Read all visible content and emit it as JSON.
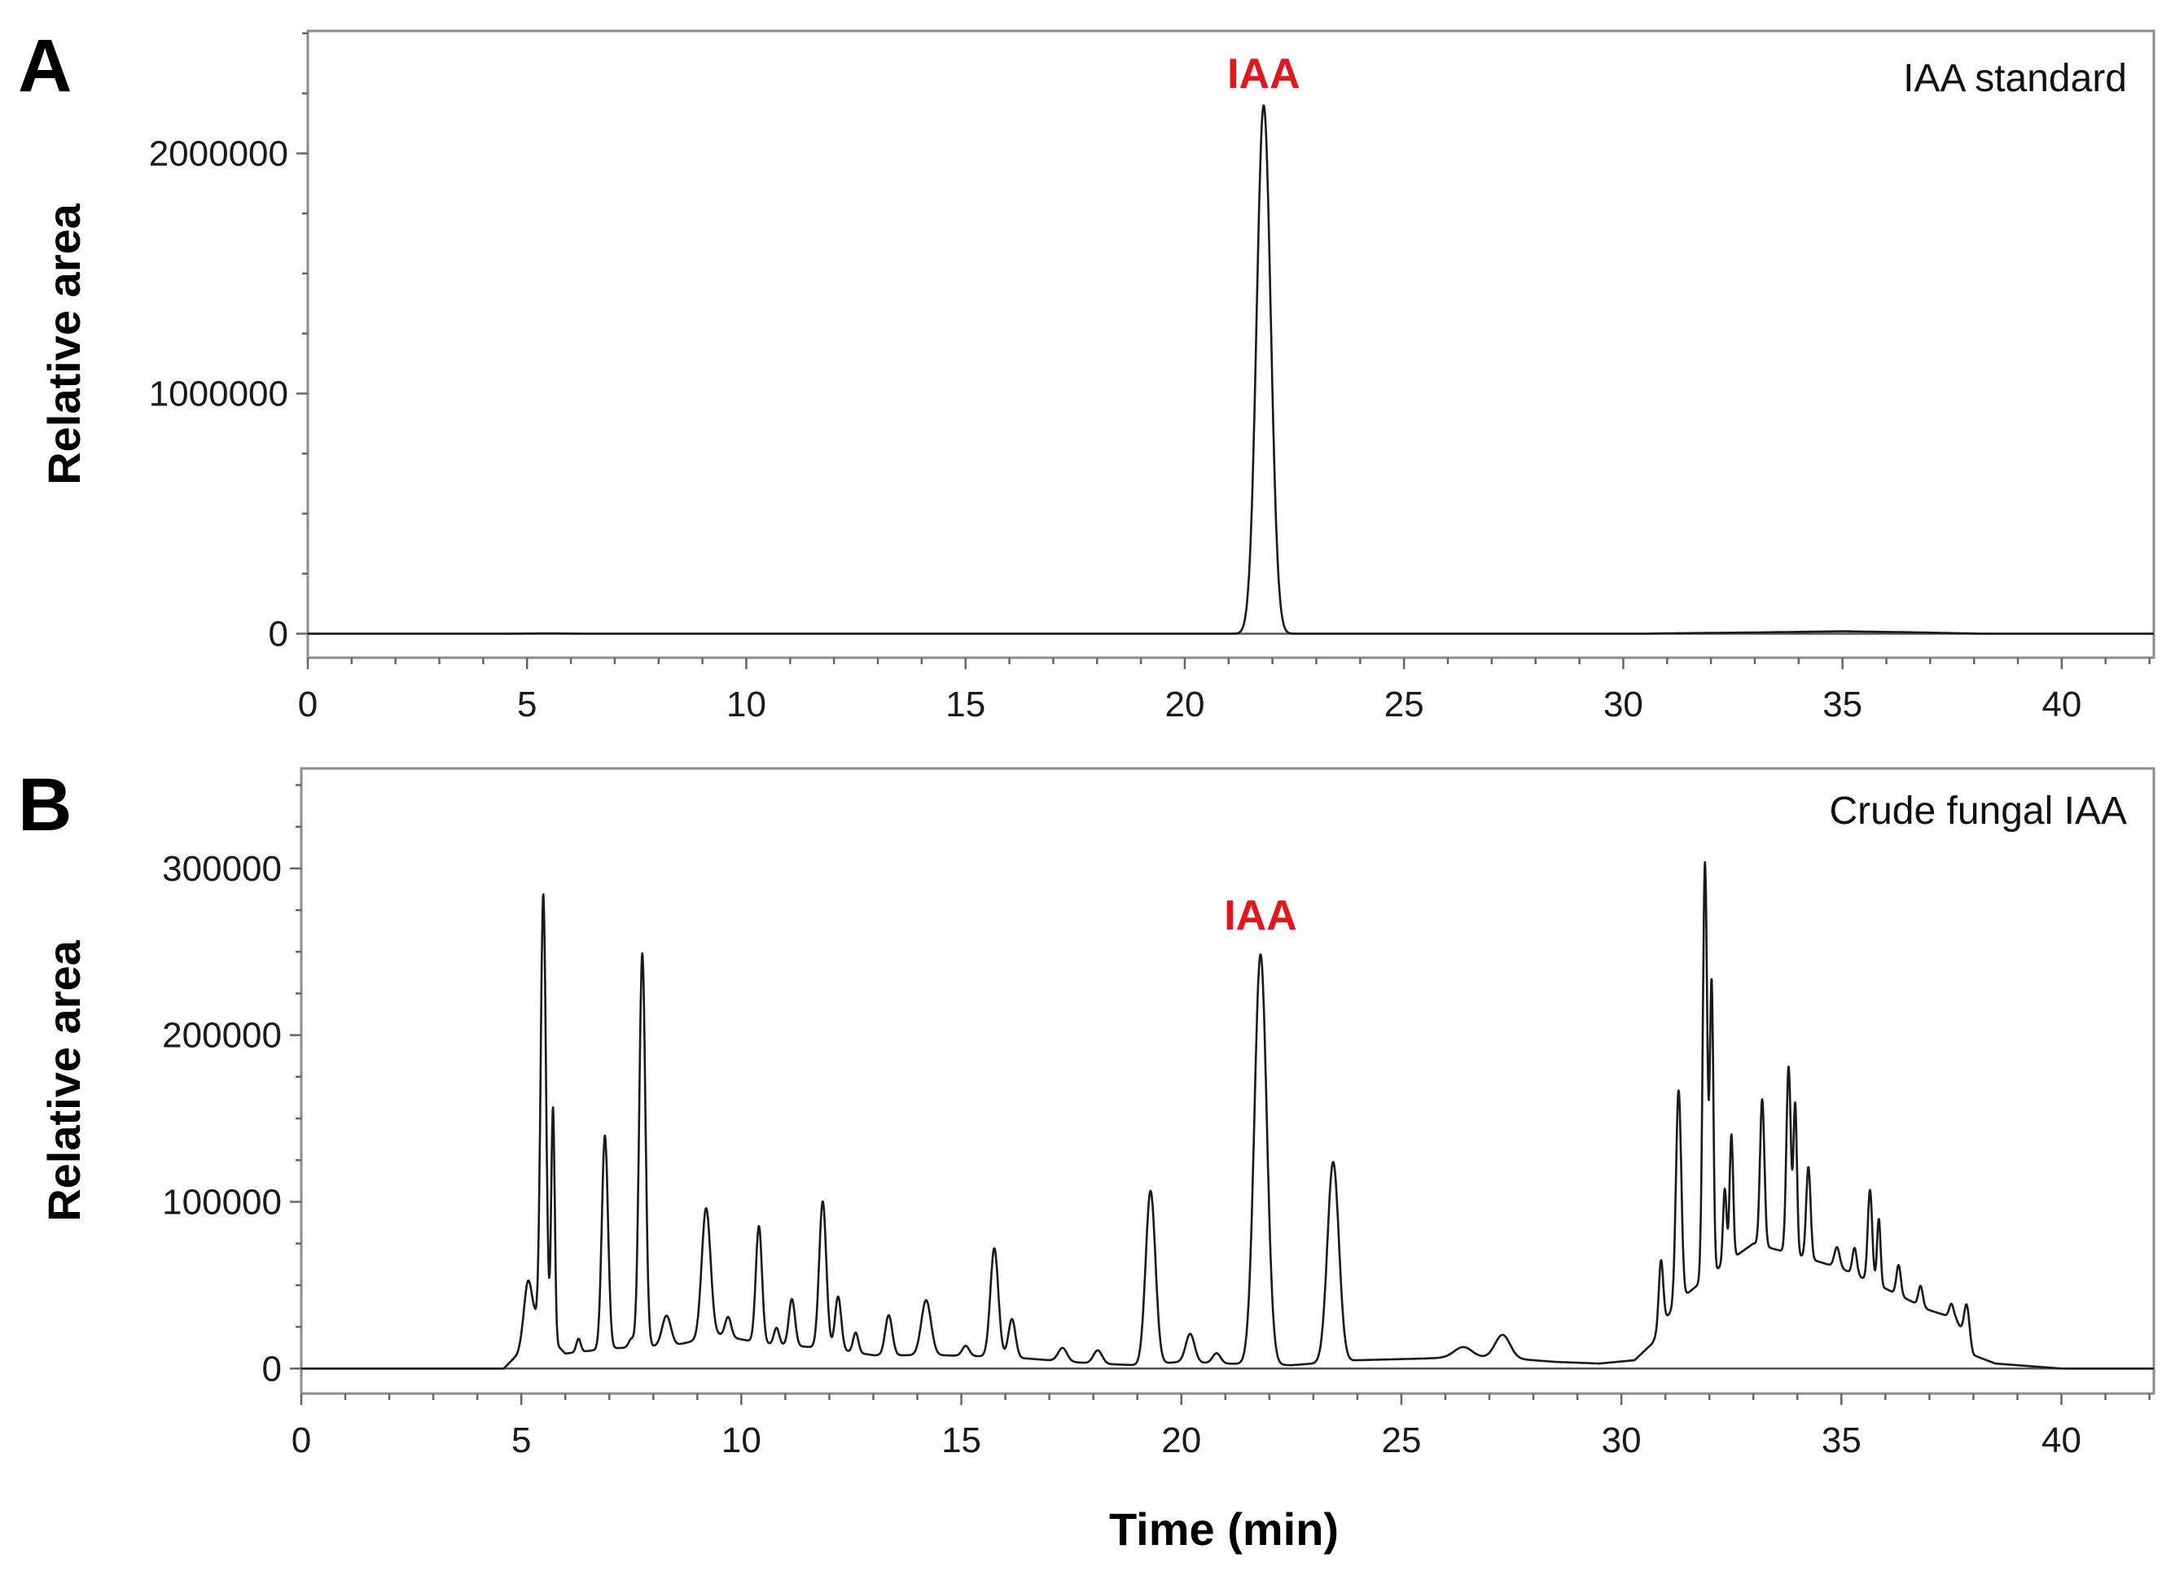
{
  "chart_data": [
    {
      "type": "line",
      "panel": "A",
      "sample_label": "IAA standard",
      "peak_label": {
        "text": "IAA",
        "x": 21.8,
        "color": "#e8141b"
      },
      "xlabel": "",
      "ylabel": "Relative area",
      "xlim": [
        0,
        42.1
      ],
      "ylim": [
        -100000,
        2510000
      ],
      "x_ticks": [
        0,
        5,
        10,
        15,
        20,
        25,
        30,
        35,
        40
      ],
      "x_tick_labels": [
        "0",
        "5",
        "10",
        "15",
        "20",
        "25",
        "30",
        "35",
        "40"
      ],
      "y_ticks": [
        0,
        1000000,
        2000000
      ],
      "y_tick_labels": [
        "0",
        "1000000",
        "2000000"
      ],
      "grid": false,
      "series": [
        {
          "color": "#1a1a1a",
          "baseline": [
            [
              0,
              0
            ],
            [
              4.5,
              0
            ],
            [
              5.5,
              1200
            ],
            [
              6.3,
              0
            ],
            [
              30.5,
              0
            ],
            [
              31,
              1500
            ],
            [
              33,
              5000
            ],
            [
              35,
              10000
            ],
            [
              36.5,
              6000
            ],
            [
              38.2,
              0
            ],
            [
              42.1,
              0
            ]
          ],
          "peaks": [
            [
              21.8,
              2200000,
              0.16
            ]
          ]
        }
      ]
    },
    {
      "type": "line",
      "panel": "B",
      "sample_label": "Crude fungal IAA",
      "peak_label": {
        "text": "IAA",
        "x": 21.8,
        "color": "#e8141b"
      },
      "xlabel": "Time (min)",
      "ylabel": "Relative area",
      "xlim": [
        0,
        42.1
      ],
      "ylim": [
        -15000,
        360000
      ],
      "x_ticks": [
        0,
        5,
        10,
        15,
        20,
        25,
        30,
        35,
        40
      ],
      "x_tick_labels": [
        "0",
        "5",
        "10",
        "15",
        "20",
        "25",
        "30",
        "35",
        "40"
      ],
      "y_ticks": [
        0,
        100000,
        200000,
        300000
      ],
      "y_tick_labels": [
        "0",
        "100000",
        "200000",
        "300000"
      ],
      "grid": false,
      "series": [
        {
          "color": "#1a1a1a",
          "baseline": [
            [
              0,
              0
            ],
            [
              4.6,
              0
            ],
            [
              4.9,
              8000
            ],
            [
              5.3,
              28000
            ],
            [
              6.0,
              9000
            ],
            [
              7.0,
              12000
            ],
            [
              8.5,
              14000
            ],
            [
              9.5,
              20000
            ],
            [
              10.5,
              15000
            ],
            [
              12.0,
              12000
            ],
            [
              13.0,
              8000
            ],
            [
              14.5,
              8000
            ],
            [
              16.0,
              7000
            ],
            [
              17.0,
              5000
            ],
            [
              18.0,
              3000
            ],
            [
              19.0,
              2000
            ],
            [
              20.0,
              4000
            ],
            [
              21.0,
              3000
            ],
            [
              22.5,
              2000
            ],
            [
              24.0,
              5000
            ],
            [
              25.5,
              6000
            ],
            [
              26.5,
              7000
            ],
            [
              27.5,
              6000
            ],
            [
              28.5,
              4000
            ],
            [
              29.5,
              3000
            ],
            [
              30.3,
              5000
            ],
            [
              30.7,
              15000
            ],
            [
              31.0,
              30000
            ],
            [
              31.5,
              45000
            ],
            [
              32.2,
              60000
            ],
            [
              33.0,
              75000
            ],
            [
              34.0,
              68000
            ],
            [
              35.0,
              60000
            ],
            [
              36.0,
              48000
            ],
            [
              37.0,
              35000
            ],
            [
              37.6,
              30000
            ],
            [
              38.0,
              8000
            ],
            [
              38.5,
              3000
            ],
            [
              40.0,
              0
            ],
            [
              42.1,
              0
            ]
          ],
          "peaks": [
            [
              5.15,
              32000,
              0.09
            ],
            [
              5.5,
              262000,
              0.06
            ],
            [
              5.72,
              140000,
              0.04
            ],
            [
              6.3,
              8000,
              0.05
            ],
            [
              6.9,
              128000,
              0.07
            ],
            [
              7.5,
              5000,
              0.06
            ],
            [
              7.75,
              236000,
              0.07
            ],
            [
              8.3,
              18000,
              0.1
            ],
            [
              9.2,
              78000,
              0.1
            ],
            [
              9.7,
              12000,
              0.07
            ],
            [
              10.4,
              70000,
              0.07
            ],
            [
              10.8,
              10000,
              0.06
            ],
            [
              11.15,
              28000,
              0.07
            ],
            [
              11.85,
              88000,
              0.08
            ],
            [
              12.2,
              32000,
              0.07
            ],
            [
              12.6,
              12000,
              0.06
            ],
            [
              13.35,
              24000,
              0.08
            ],
            [
              14.2,
              33000,
              0.11
            ],
            [
              15.1,
              6000,
              0.08
            ],
            [
              15.75,
              65000,
              0.09
            ],
            [
              16.15,
              23000,
              0.08
            ],
            [
              17.3,
              8000,
              0.1
            ],
            [
              18.1,
              8000,
              0.1
            ],
            [
              19.3,
              104000,
              0.11
            ],
            [
              20.2,
              17000,
              0.1
            ],
            [
              20.8,
              6000,
              0.09
            ],
            [
              21.8,
              246000,
              0.14
            ],
            [
              23.45,
              120000,
              0.13
            ],
            [
              26.4,
              6000,
              0.2
            ],
            [
              27.3,
              14000,
              0.17
            ],
            [
              30.9,
              40000,
              0.05
            ],
            [
              31.3,
              128000,
              0.06
            ],
            [
              31.9,
              250000,
              0.05
            ],
            [
              32.05,
              175000,
              0.04
            ],
            [
              32.35,
              45000,
              0.04
            ],
            [
              32.5,
              75000,
              0.04
            ],
            [
              33.2,
              88000,
              0.05
            ],
            [
              33.8,
              112000,
              0.05
            ],
            [
              33.95,
              90000,
              0.04
            ],
            [
              34.25,
              55000,
              0.05
            ],
            [
              34.9,
              12000,
              0.06
            ],
            [
              35.3,
              16000,
              0.05
            ],
            [
              35.65,
              55000,
              0.05
            ],
            [
              35.85,
              40000,
              0.04
            ],
            [
              36.3,
              18000,
              0.05
            ],
            [
              36.8,
              12000,
              0.05
            ],
            [
              37.5,
              8000,
              0.05
            ],
            [
              37.85,
              22000,
              0.06
            ]
          ]
        }
      ]
    }
  ]
}
